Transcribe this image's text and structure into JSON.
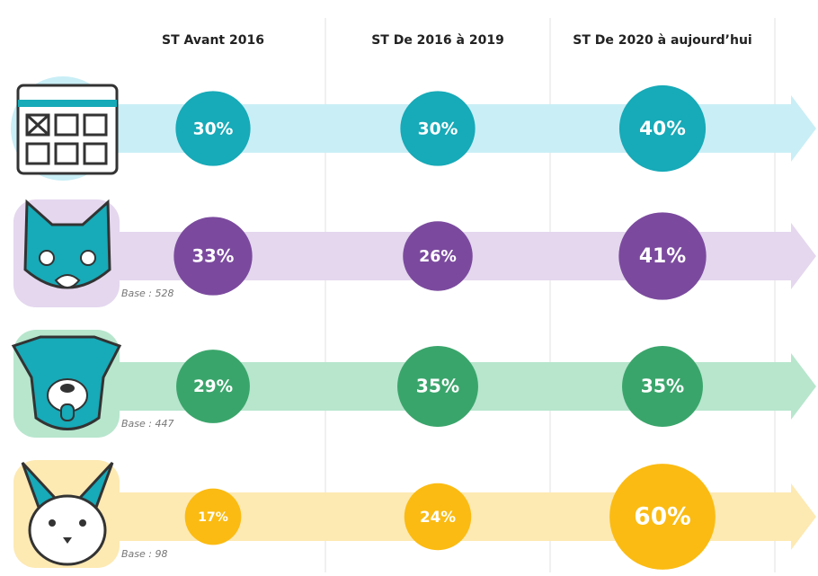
{
  "chart_data": {
    "type": "bubble",
    "categories": [
      "ST Avant 2016",
      "ST De 2016 à 2019",
      "ST De 2020 à aujourd’hui"
    ],
    "series": [
      {
        "color": "#17aab8",
        "band": "#c9eef6",
        "values": [
          30,
          30,
          40
        ],
        "value_labels": [
          "30%",
          "30%",
          "40%"
        ]
      },
      {
        "color": "#7b4a9e",
        "band": "#e4d7ee",
        "values": [
          33,
          26,
          41
        ],
        "value_labels": [
          "33%",
          "26%",
          "41%"
        ],
        "note": "Base : 528"
      },
      {
        "color": "#3aa56b",
        "band": "#b7e6cd",
        "values": [
          29,
          35,
          35
        ],
        "value_labels": [
          "29%",
          "35%",
          "35%"
        ],
        "note": "Base : 447"
      },
      {
        "color": "#fbbb12",
        "band": "#fde9b2",
        "values": [
          17,
          24,
          60
        ],
        "value_labels": [
          "17%",
          "24%",
          "60%"
        ],
        "note": "Base : 98"
      }
    ]
  }
}
